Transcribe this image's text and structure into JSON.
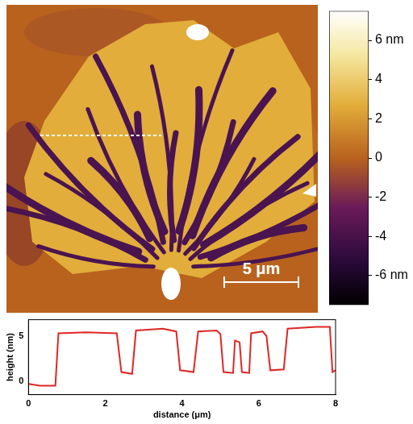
{
  "chart_data": [
    {
      "type": "heatmap",
      "annotations": [
        "5 μm"
      ],
      "colorbar": {
        "range": [
          -7.5,
          7.5
        ],
        "ticks": [
          {
            "value": 6,
            "label": "6 nm"
          },
          4,
          2,
          0,
          -2,
          -4,
          {
            "value": -6,
            "label": "-6 nm"
          }
        ]
      }
    },
    {
      "type": "line",
      "x_label": "distance (μm)",
      "y_label": "height (nm)",
      "color": "#e02626",
      "x": [
        0,
        0.3,
        0.7,
        0.78,
        1.5,
        2.3,
        2.42,
        2.7,
        2.8,
        3.5,
        3.85,
        3.95,
        4.3,
        4.42,
        4.9,
        5.0,
        5.08,
        5.33,
        5.38,
        5.5,
        5.56,
        5.75,
        5.8,
        6.1,
        6.2,
        6.3,
        6.65,
        6.75,
        7.5,
        7.85,
        7.92,
        8.0
      ],
      "values": [
        -0.3,
        -0.5,
        -0.5,
        5.3,
        5.4,
        5.3,
        1.0,
        0.8,
        5.6,
        5.8,
        5.5,
        1.2,
        1.0,
        5.5,
        5.6,
        5.2,
        1.0,
        0.9,
        4.5,
        4.3,
        1.0,
        0.9,
        5.3,
        5.5,
        5.0,
        1.2,
        1.3,
        5.8,
        6.0,
        6.0,
        1.0,
        1.2
      ],
      "xlim": [
        0,
        8
      ],
      "ylim": [
        -1.5,
        6.8
      ],
      "xticks": [
        0,
        2,
        4,
        6,
        8
      ],
      "yticks": [
        0,
        5
      ],
      "grid": false
    }
  ]
}
